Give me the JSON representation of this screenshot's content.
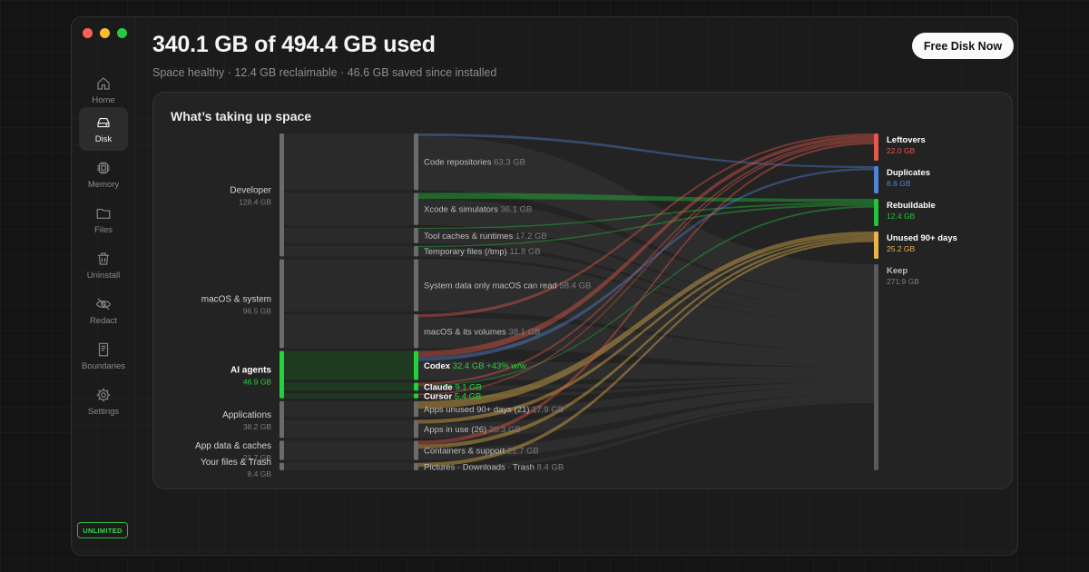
{
  "window": {
    "traffic_lights": [
      "#ff5f57",
      "#febc2e",
      "#28c840"
    ]
  },
  "sidebar": {
    "items": [
      {
        "label": "Home",
        "icon": "home-icon",
        "active": false
      },
      {
        "label": "Disk",
        "icon": "disk-icon",
        "active": true
      },
      {
        "label": "Memory",
        "icon": "chip-icon",
        "active": false
      },
      {
        "label": "Files",
        "icon": "folder-icon",
        "active": false
      },
      {
        "label": "Uninstall",
        "icon": "trash-icon",
        "active": false
      },
      {
        "label": "Redact",
        "icon": "eye-off-icon",
        "active": false
      },
      {
        "label": "Boundaries",
        "icon": "book-icon",
        "active": false
      },
      {
        "label": "Settings",
        "icon": "gear-icon",
        "active": false
      }
    ],
    "badge": "UNLIMITED"
  },
  "header": {
    "title": "340.1 GB of 494.4 GB used",
    "subtitle": "Space healthy · 12.4 GB reclaimable · 46.6 GB saved since installed",
    "cta": "Free Disk Now"
  },
  "panel": {
    "title": "What’s taking up space"
  },
  "chart_data": {
    "type": "sankey",
    "title": "What’s taking up space",
    "colors": {
      "Leftovers": "#e5574a",
      "Duplicates": "#4f83d9",
      "Rebuildable": "#22c43a",
      "Unused 90+ days": "#e8b54a",
      "Keep": "#5a5a5a",
      "ai": "#22d33a"
    },
    "groups": [
      {
        "name": "Developer",
        "size": "128.4 GB",
        "value": 128.4
      },
      {
        "name": "macOS & system",
        "size": "96.5 GB",
        "value": 96.5
      },
      {
        "name": "AI agents",
        "size": "46.9 GB",
        "value": 46.9,
        "highlight": true
      },
      {
        "name": "Applications",
        "size": "38.2 GB",
        "value": 38.2
      },
      {
        "name": "App data & caches",
        "size": "21.7 GB",
        "value": 21.7
      },
      {
        "name": "Your files & Trash",
        "size": "8.4 GB",
        "value": 8.4
      }
    ],
    "items": [
      {
        "group": 0,
        "name": "Code repositories",
        "size": "63.3 GB",
        "value": 63.3
      },
      {
        "group": 0,
        "name": "Xcode & simulators",
        "size": "36.1 GB",
        "value": 36.1
      },
      {
        "group": 0,
        "name": "Tool caches & runtimes",
        "size": "17.2 GB",
        "value": 17.2
      },
      {
        "group": 0,
        "name": "Temporary files (/tmp)",
        "size": "11.8 GB",
        "value": 11.8
      },
      {
        "group": 1,
        "name": "System data only macOS can read",
        "size": "58.4 GB",
        "value": 58.4
      },
      {
        "group": 1,
        "name": "macOS & its volumes",
        "size": "38.1 GB",
        "value": 38.1
      },
      {
        "group": 2,
        "name": "Codex",
        "size": "32.4 GB +43% w/w",
        "value": 32.4,
        "highlight": true
      },
      {
        "group": 2,
        "name": "Claude",
        "size": "9.1 GB",
        "value": 9.1,
        "highlight": true
      },
      {
        "group": 2,
        "name": "Cursor",
        "size": "5.4 GB",
        "value": 5.4,
        "highlight": true
      },
      {
        "group": 3,
        "name": "Apps unused 90+ days (21)",
        "size": "17.9 GB",
        "value": 17.9
      },
      {
        "group": 3,
        "name": "Apps in use (26)",
        "size": "20.3 GB",
        "value": 20.3
      },
      {
        "group": 4,
        "name": "Containers & support",
        "size": "21.7 GB",
        "value": 21.7
      },
      {
        "group": 5,
        "name": "Pictures · Downloads · Trash",
        "size": "8.4 GB",
        "value": 8.4
      }
    ],
    "targets": [
      {
        "name": "Leftovers",
        "size": "22.0 GB",
        "value": 22.0
      },
      {
        "name": "Duplicates",
        "size": "8.6 GB",
        "value": 8.6
      },
      {
        "name": "Rebuildable",
        "size": "12.4 GB",
        "value": 12.4
      },
      {
        "name": "Unused 90+ days",
        "size": "25.2 GB",
        "value": 25.2
      },
      {
        "name": "Keep",
        "size": "271.9 GB",
        "value": 271.9
      }
    ],
    "flows": [
      {
        "from": 0,
        "to": "Duplicates",
        "value": 3.5
      },
      {
        "from": 1,
        "to": "Rebuildable",
        "value": 8.0
      },
      {
        "from": 2,
        "to": "Rebuildable",
        "value": 1.5
      },
      {
        "from": 3,
        "to": "Rebuildable",
        "value": 1.5
      },
      {
        "from": 5,
        "to": "Leftovers",
        "value": 4.0
      },
      {
        "from": 6,
        "to": "Leftovers",
        "value": 8.0
      },
      {
        "from": 6,
        "to": "Duplicates",
        "value": 5.1
      },
      {
        "from": 7,
        "to": "Leftovers",
        "value": 3.0
      },
      {
        "from": 7,
        "to": "Rebuildable",
        "value": 1.4
      },
      {
        "from": 8,
        "to": "Leftovers",
        "value": 2.0
      },
      {
        "from": 9,
        "to": "Unused 90+ days",
        "value": 10.0
      },
      {
        "from": 10,
        "to": "Unused 90+ days",
        "value": 5.0
      },
      {
        "from": 11,
        "to": "Leftovers",
        "value": 5.0
      },
      {
        "from": 11,
        "to": "Unused 90+ days",
        "value": 5.2
      },
      {
        "from": 12,
        "to": "Unused 90+ days",
        "value": 5.0
      }
    ]
  }
}
